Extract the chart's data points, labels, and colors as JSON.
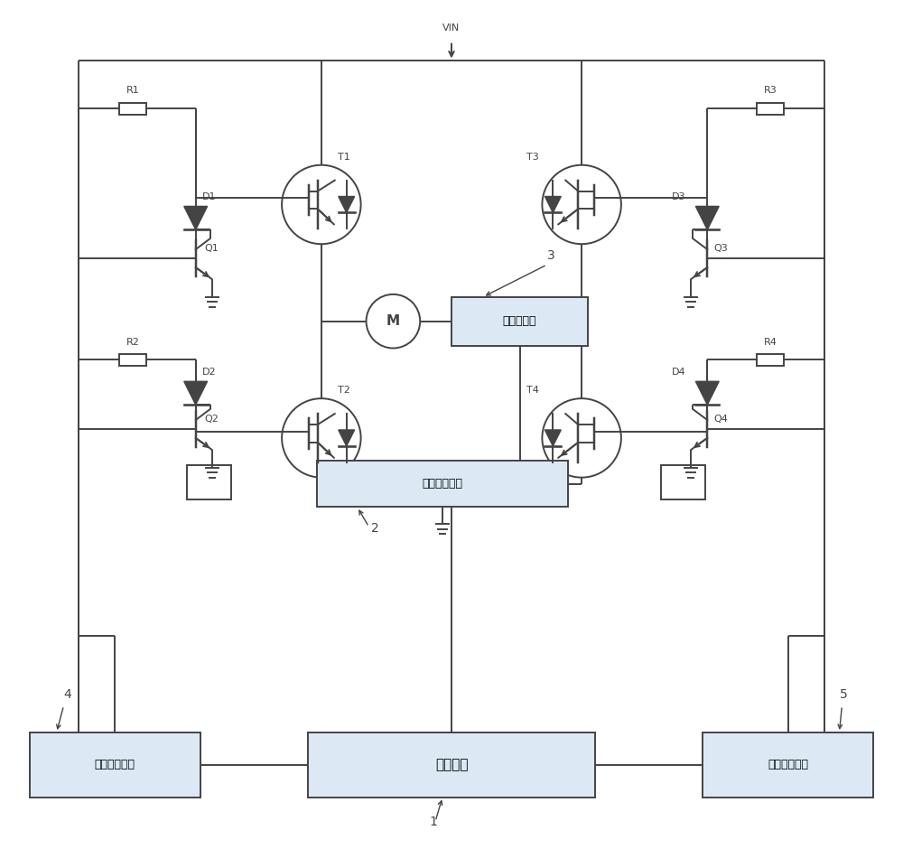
{
  "lc": "#444444",
  "lw": 1.4,
  "bg": "white",
  "labels": {
    "VIN": "VIN",
    "T1": "T1",
    "T2": "T2",
    "T3": "T3",
    "T4": "T4",
    "Q1": "Q1",
    "Q2": "Q2",
    "Q3": "Q3",
    "Q4": "Q4",
    "R1": "R1",
    "R2": "R2",
    "R3": "R3",
    "R4": "R4",
    "D1": "D1",
    "D2": "D2",
    "D3": "D3",
    "D4": "D4",
    "M": "M",
    "box_ctrl": "控制电路",
    "box_oc": "过流保护电路",
    "box_cs": "电流互感器",
    "box_gd1": "第一栅极驱动",
    "box_gd2": "第二栈极驱动",
    "n1": "1",
    "n2": "2",
    "n3": "3",
    "n4": "4",
    "n5": "5"
  },
  "box_fill": "#dce9f5"
}
